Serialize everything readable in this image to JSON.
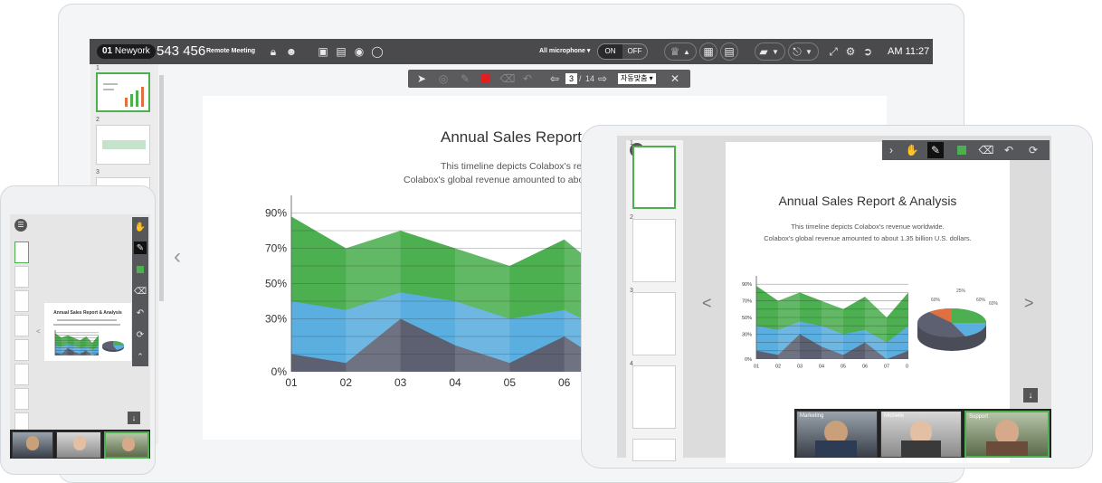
{
  "meeting": {
    "room_badge_num": "01",
    "room_badge_name": "Newyork",
    "room_number": "543 456",
    "title": "Remote Meeting",
    "mic_filter": "All microphone",
    "mic_on": "ON",
    "mic_off": "OFF",
    "clock": "AM 11:27"
  },
  "doc_toolbar": {
    "current_page": "3",
    "separator": "/",
    "total_pages": "14",
    "mode_select": "자동맞춤"
  },
  "thumbnails": [
    "1",
    "2",
    "3",
    "4"
  ],
  "slide": {
    "title": "Annual Sales Report & Analysis",
    "desc_line1": "This timeline depicts Colabox's revenue worldwide.",
    "desc_line2": "Colabox's global revenue amounted to about 1.35 billion U.S. dollars.",
    "desk_title": "Annual Sales Report &",
    "desk_desc_line1": "This timeline depicts Colabox's reve",
    "desk_desc_line2": "Colabox's global revenue amounted to abo",
    "pie_labels": [
      "60%",
      "25%",
      "15%",
      "60%"
    ]
  },
  "participants": [
    {
      "name": "Marketing"
    },
    {
      "name": "Michelle"
    },
    {
      "name": "Support"
    }
  ],
  "chart_data": {
    "type": "area",
    "categories": [
      "01",
      "02",
      "03",
      "04",
      "05",
      "06",
      "07",
      "08"
    ],
    "y_ticks": [
      "90%",
      "70%",
      "50%",
      "30%",
      "0%"
    ],
    "series": [
      {
        "values": [
          88,
          70,
          80,
          70,
          60,
          75,
          50,
          80
        ],
        "color": "#4caf50"
      },
      {
        "values": [
          40,
          35,
          45,
          40,
          30,
          35,
          20,
          40
        ],
        "color": "#5aaee0"
      },
      {
        "values": [
          10,
          5,
          30,
          15,
          5,
          20,
          0,
          10
        ],
        "color": "#5c6070"
      }
    ],
    "ylim": [
      0,
      100
    ]
  },
  "colors": {
    "accent_green": "#4cb050",
    "toolbar_dark": "#4a4a4d",
    "active_red": "#e02020"
  }
}
